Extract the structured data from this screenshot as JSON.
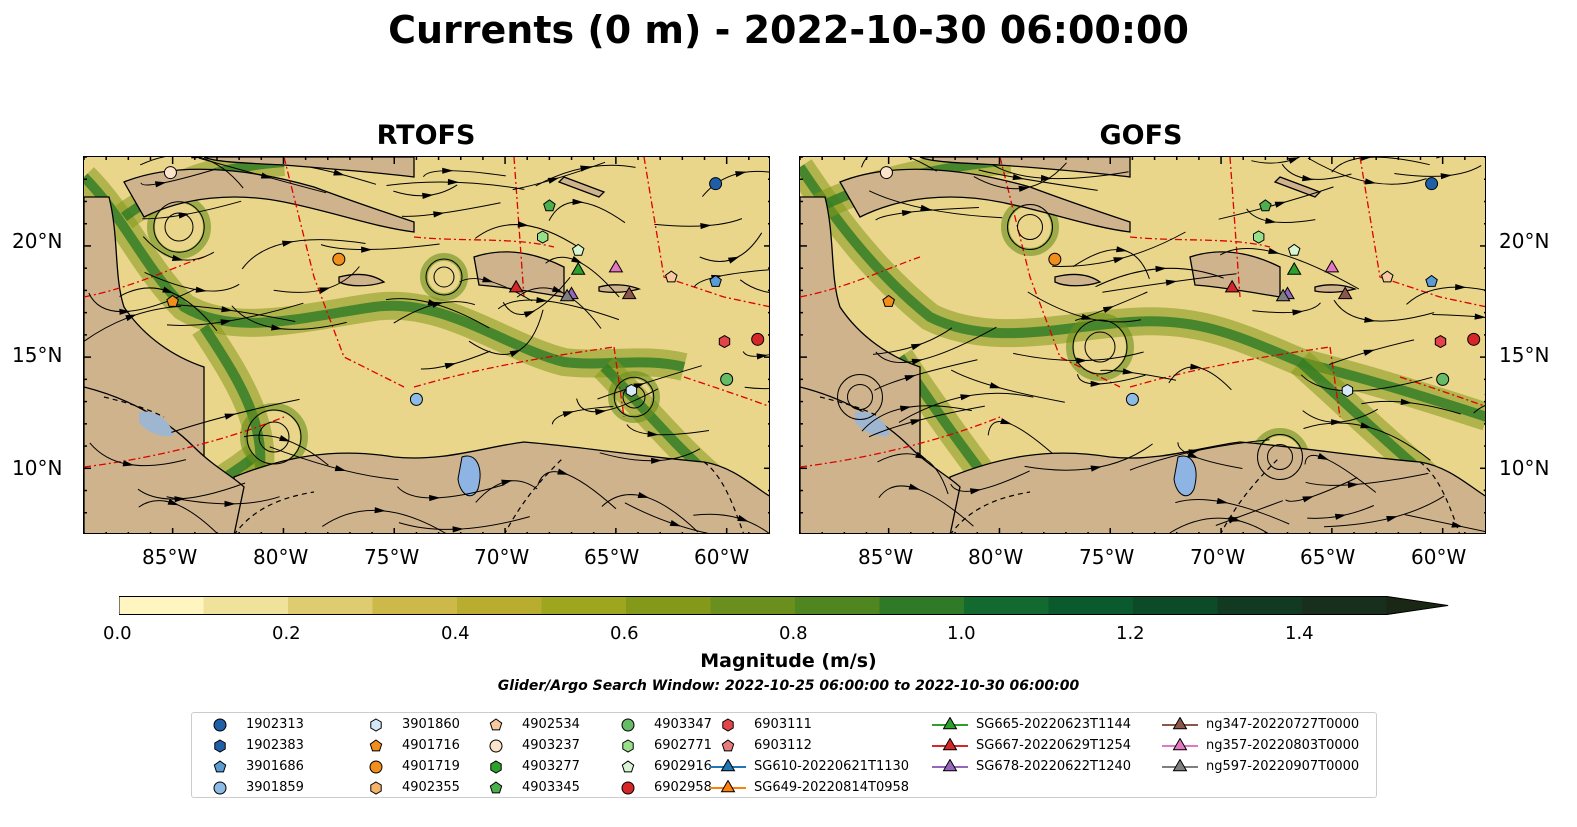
{
  "title": "Currents (0 m) - 2022-10-30 06:00:00",
  "panels": [
    {
      "title": "RTOFS"
    },
    {
      "title": "GOFS"
    }
  ],
  "x_ticks": [
    "85°W",
    "80°W",
    "75°W",
    "70°W",
    "65°W",
    "60°W"
  ],
  "y_ticks": [
    "20°N",
    "15°N",
    "10°N"
  ],
  "colorbar": {
    "label": "Magnitude (m/s)",
    "ticks": [
      "0.0",
      "0.2",
      "0.4",
      "0.6",
      "0.8",
      "1.0",
      "1.2",
      "1.4"
    ],
    "colors": [
      "#fff5c0",
      "#f0e29a",
      "#dfcb70",
      "#cdb84a",
      "#b8ad2e",
      "#9ea51e",
      "#84991a",
      "#6a8f1c",
      "#4f8620",
      "#2e7a26",
      "#136a30",
      "#0b5a2e",
      "#0c4a28",
      "#123a22",
      "#172f1c",
      "#1b2715"
    ]
  },
  "search_window": "Glider/Argo Search Window: 2022-10-25 06:00:00 to 2022-10-30 06:00:00",
  "chart_data": {
    "type": "map",
    "region": {
      "lon_range": [
        -89,
        -58
      ],
      "lat_range": [
        7,
        24
      ]
    },
    "variable": "ocean surface current magnitude (m/s)",
    "color_range": [
      0,
      1.5
    ],
    "floats_and_gliders": [
      {
        "id": "1902313",
        "marker": "circle",
        "color": "#1f5fa8",
        "lon": -60.5,
        "lat": 22.8
      },
      {
        "id": "1902383",
        "marker": "hexagon",
        "color": "#1f5fa8"
      },
      {
        "id": "3901686",
        "marker": "pentagon",
        "color": "#5b9bd5",
        "lon": -60.5,
        "lat": 18.4
      },
      {
        "id": "3901859",
        "marker": "circle",
        "color": "#8dbbe6",
        "lon": -74.0,
        "lat": 13.1
      },
      {
        "id": "3901860",
        "marker": "hexagon",
        "color": "#d5e8f7",
        "lon": -64.3,
        "lat": 13.5
      },
      {
        "id": "4901716",
        "marker": "pentagon",
        "color": "#f28e1c",
        "lon": -85.0,
        "lat": 17.5
      },
      {
        "id": "4901719",
        "marker": "circle",
        "color": "#f28e1c",
        "lon": -77.5,
        "lat": 19.4
      },
      {
        "id": "4902355",
        "marker": "hexagon",
        "color": "#f6b36a"
      },
      {
        "id": "4902534",
        "marker": "pentagon",
        "color": "#f8caa0",
        "lon": -62.5,
        "lat": 18.6
      },
      {
        "id": "4903237",
        "marker": "circle",
        "color": "#fde3cc",
        "lon": -85.1,
        "lat": 23.3
      },
      {
        "id": "4903277",
        "marker": "hexagon",
        "color": "#2ca02c"
      },
      {
        "id": "4903345",
        "marker": "pentagon",
        "color": "#4cae4c",
        "lon": -68.0,
        "lat": 21.8
      },
      {
        "id": "4903347",
        "marker": "circle",
        "color": "#66bb66",
        "lon": -60.0,
        "lat": 14.0
      },
      {
        "id": "6902771",
        "marker": "hexagon",
        "color": "#98df8a",
        "lon": -68.3,
        "lat": 20.4
      },
      {
        "id": "6902916",
        "marker": "pentagon",
        "color": "#d6f5d0",
        "lon": -66.7,
        "lat": 19.8
      },
      {
        "id": "6902958",
        "marker": "circle",
        "color": "#d62728",
        "lon": -58.6,
        "lat": 15.8
      },
      {
        "id": "6903111",
        "marker": "hexagon",
        "color": "#e3444a",
        "lon": -60.1,
        "lat": 15.7
      },
      {
        "id": "6903112",
        "marker": "pentagon",
        "color": "#e77c7c"
      },
      {
        "id": "SG610-20220621T1130",
        "marker": "triangle",
        "color": "#1f77b4",
        "line": true
      },
      {
        "id": "SG649-20220814T0958",
        "marker": "triangle",
        "color": "#ff7f0e",
        "line": true
      },
      {
        "id": "SG665-20220623T1144",
        "marker": "triangle",
        "color": "#2ca02c",
        "line": true,
        "lon": -66.7,
        "lat": 18.9
      },
      {
        "id": "SG667-20220629T1254",
        "marker": "triangle",
        "color": "#d62728",
        "line": true,
        "lon": -69.5,
        "lat": 18.1
      },
      {
        "id": "SG678-20220622T1240",
        "marker": "triangle",
        "color": "#9467bd",
        "line": true,
        "lon": -67.0,
        "lat": 17.8
      },
      {
        "id": "ng347-20220727T0000",
        "marker": "triangle",
        "color": "#8c564b",
        "line": true,
        "lon": -64.4,
        "lat": 17.8
      },
      {
        "id": "ng357-20220803T0000",
        "marker": "triangle",
        "color": "#e377c2",
        "line": true,
        "lon": -65.0,
        "lat": 19.0
      },
      {
        "id": "ng597-20220907T0000",
        "marker": "triangle",
        "color": "#7f7f7f",
        "line": true,
        "lon": -67.2,
        "lat": 17.7
      }
    ]
  }
}
